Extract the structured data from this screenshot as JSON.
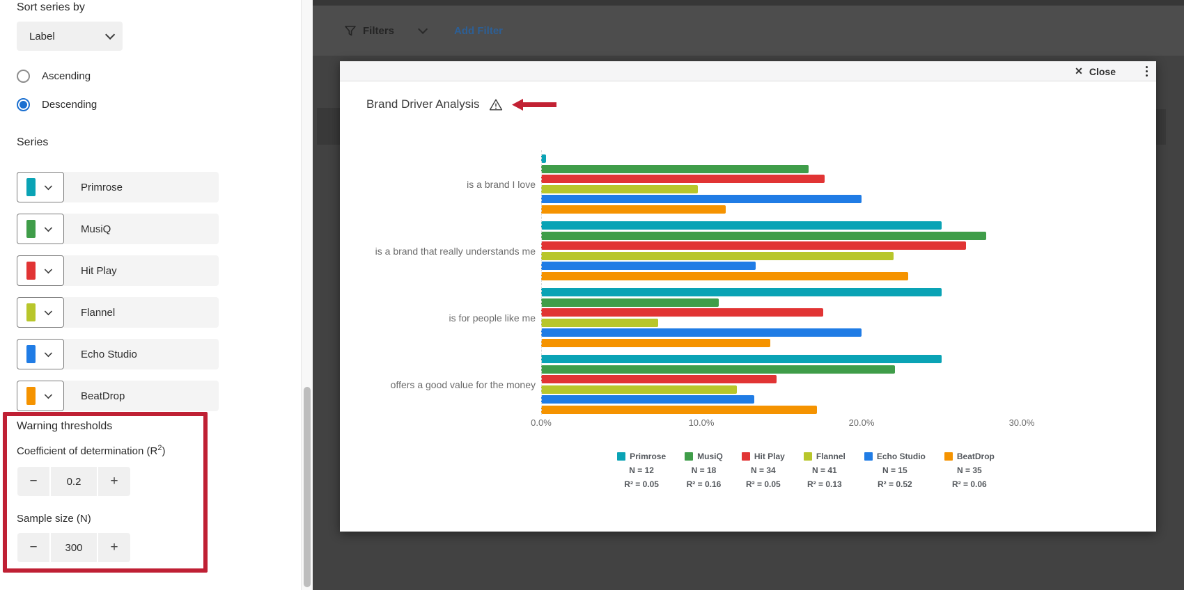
{
  "sidebar": {
    "sort_label": "Sort series by",
    "sort_dropdown_value": "Label",
    "radio_ascending": "Ascending",
    "radio_descending": "Descending",
    "series_heading": "Series",
    "series": [
      {
        "name": "Primrose",
        "color": "#0aa3b5"
      },
      {
        "name": "MusiQ",
        "color": "#3f9d49"
      },
      {
        "name": "Hit Play",
        "color": "#e13434"
      },
      {
        "name": "Flannel",
        "color": "#b8c62b"
      },
      {
        "name": "Echo Studio",
        "color": "#207ce5"
      },
      {
        "name": "BeatDrop",
        "color": "#f59300"
      }
    ],
    "warning": {
      "heading": "Warning thresholds",
      "r2_label_prefix": "Coefficient of determination (R",
      "r2_label_sup": "2",
      "r2_label_suffix": ")",
      "r2_value": "0.2",
      "n_label": "Sample size (N)",
      "n_value": "300",
      "minus": "−",
      "plus": "+"
    },
    "annotation_color": "#bf2034"
  },
  "filters_bar": {
    "filters_label": "Filters",
    "add_filter_label": "Add Filter"
  },
  "modal": {
    "close_label": "Close",
    "title": "Brand Driver Analysis"
  },
  "chart_data": {
    "type": "bar",
    "orientation": "horizontal",
    "title": "Brand Driver Analysis",
    "categories": [
      "is a brand I love",
      "is a brand that really understands me",
      "is for people like me",
      "offers a good value for the money"
    ],
    "series": [
      {
        "name": "Primrose",
        "color": "#0aa3b5",
        "n_label": "N = 12",
        "r2_label": "R² = 0.05",
        "values": [
          0.3,
          25.0,
          25.0,
          25.0
        ]
      },
      {
        "name": "MusiQ",
        "color": "#3f9d49",
        "n_label": "N = 18",
        "r2_label": "R² = 0.16",
        "values": [
          16.7,
          27.8,
          11.1,
          22.1
        ]
      },
      {
        "name": "Hit Play",
        "color": "#e13434",
        "n_label": "N = 34",
        "r2_label": "R² = 0.05",
        "values": [
          17.7,
          26.5,
          17.6,
          14.7
        ]
      },
      {
        "name": "Flannel",
        "color": "#b8c62b",
        "n_label": "N = 41",
        "r2_label": "R² = 0.13",
        "values": [
          9.8,
          22.0,
          7.3,
          12.2
        ]
      },
      {
        "name": "Echo Studio",
        "color": "#207ce5",
        "n_label": "N = 15",
        "r2_label": "R² = 0.52",
        "values": [
          20.0,
          13.4,
          20.0,
          13.3
        ]
      },
      {
        "name": "BeatDrop",
        "color": "#f59300",
        "n_label": "N = 35",
        "r2_label": "R² = 0.06",
        "values": [
          11.5,
          22.9,
          14.3,
          17.2
        ]
      }
    ],
    "x_ticks": [
      "0.0%",
      "10.0%",
      "20.0%",
      "30.0%"
    ],
    "x_tick_values": [
      0,
      10,
      20,
      30
    ],
    "xlim": [
      0,
      33
    ],
    "grid": false,
    "legend_position": "bottom"
  }
}
